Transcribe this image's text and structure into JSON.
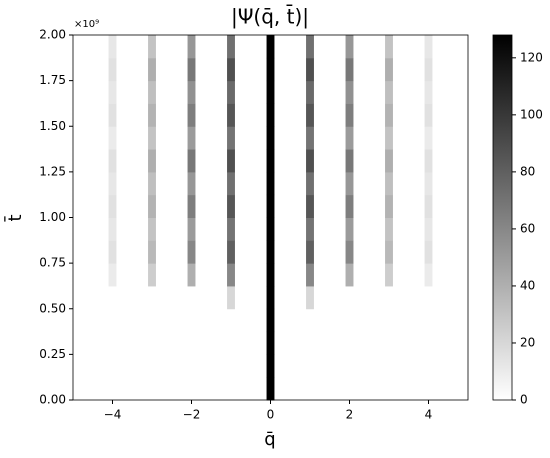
{
  "chart_data": {
    "type": "heatmap",
    "title": "|Ψ(q̄, t̄)|",
    "xlabel": "q̄",
    "ylabel": "t̄",
    "y_offset_label": "×10⁹",
    "x": [
      -4,
      -3,
      -2,
      -1,
      0,
      1,
      2,
      3,
      4
    ],
    "y_bins": [
      0,
      125000000,
      250000000,
      375000000,
      500000000,
      625000000,
      750000000,
      875000000,
      1000000000,
      1125000000,
      1250000000,
      1375000000,
      1500000000,
      1625000000,
      1750000000,
      1875000000,
      2000000000
    ],
    "values": [
      [
        0,
        0,
        0,
        0,
        128,
        0,
        0,
        0,
        0
      ],
      [
        0,
        0,
        0,
        0,
        128,
        0,
        0,
        0,
        0
      ],
      [
        0,
        0,
        0,
        0,
        128,
        0,
        0,
        0,
        0
      ],
      [
        0,
        0,
        0,
        0,
        128,
        0,
        0,
        0,
        0
      ],
      [
        0,
        0,
        0,
        20,
        128,
        20,
        0,
        0,
        0
      ],
      [
        10,
        25,
        40,
        60,
        128,
        60,
        40,
        25,
        10
      ],
      [
        15,
        35,
        60,
        80,
        128,
        80,
        60,
        35,
        15
      ],
      [
        12,
        30,
        50,
        70,
        128,
        70,
        50,
        30,
        12
      ],
      [
        15,
        38,
        65,
        85,
        128,
        85,
        65,
        38,
        15
      ],
      [
        12,
        32,
        52,
        72,
        128,
        72,
        52,
        32,
        12
      ],
      [
        15,
        40,
        68,
        88,
        128,
        88,
        68,
        40,
        15
      ],
      [
        10,
        30,
        50,
        70,
        128,
        70,
        50,
        30,
        10
      ],
      [
        15,
        38,
        65,
        85,
        128,
        85,
        65,
        38,
        15
      ],
      [
        12,
        32,
        55,
        75,
        128,
        75,
        55,
        32,
        12
      ],
      [
        15,
        40,
        68,
        88,
        128,
        88,
        68,
        40,
        15
      ],
      [
        12,
        30,
        52,
        72,
        128,
        72,
        52,
        30,
        12
      ]
    ],
    "xlim": [
      -5,
      5
    ],
    "ylim": [
      0,
      2000000000
    ],
    "xticks": [
      {
        "value": -4,
        "label": "−4"
      },
      {
        "value": -2,
        "label": "−2"
      },
      0,
      2,
      4
    ],
    "yticks": [
      {
        "value": 0,
        "label": "0.00"
      },
      {
        "value": 250000000,
        "label": "0.25"
      },
      {
        "value": 500000000,
        "label": "0.50"
      },
      {
        "value": 750000000,
        "label": "0.75"
      },
      {
        "value": 1000000000,
        "label": "1.00"
      },
      {
        "value": 1250000000,
        "label": "1.25"
      },
      {
        "value": 1500000000,
        "label": "1.50"
      },
      {
        "value": 1750000000,
        "label": "1.75"
      },
      {
        "value": 2000000000,
        "label": "2.00"
      }
    ],
    "clim": [
      0,
      128
    ],
    "cticks": [
      0,
      20,
      40,
      60,
      80,
      100,
      120
    ],
    "colormap": "gray_r"
  }
}
